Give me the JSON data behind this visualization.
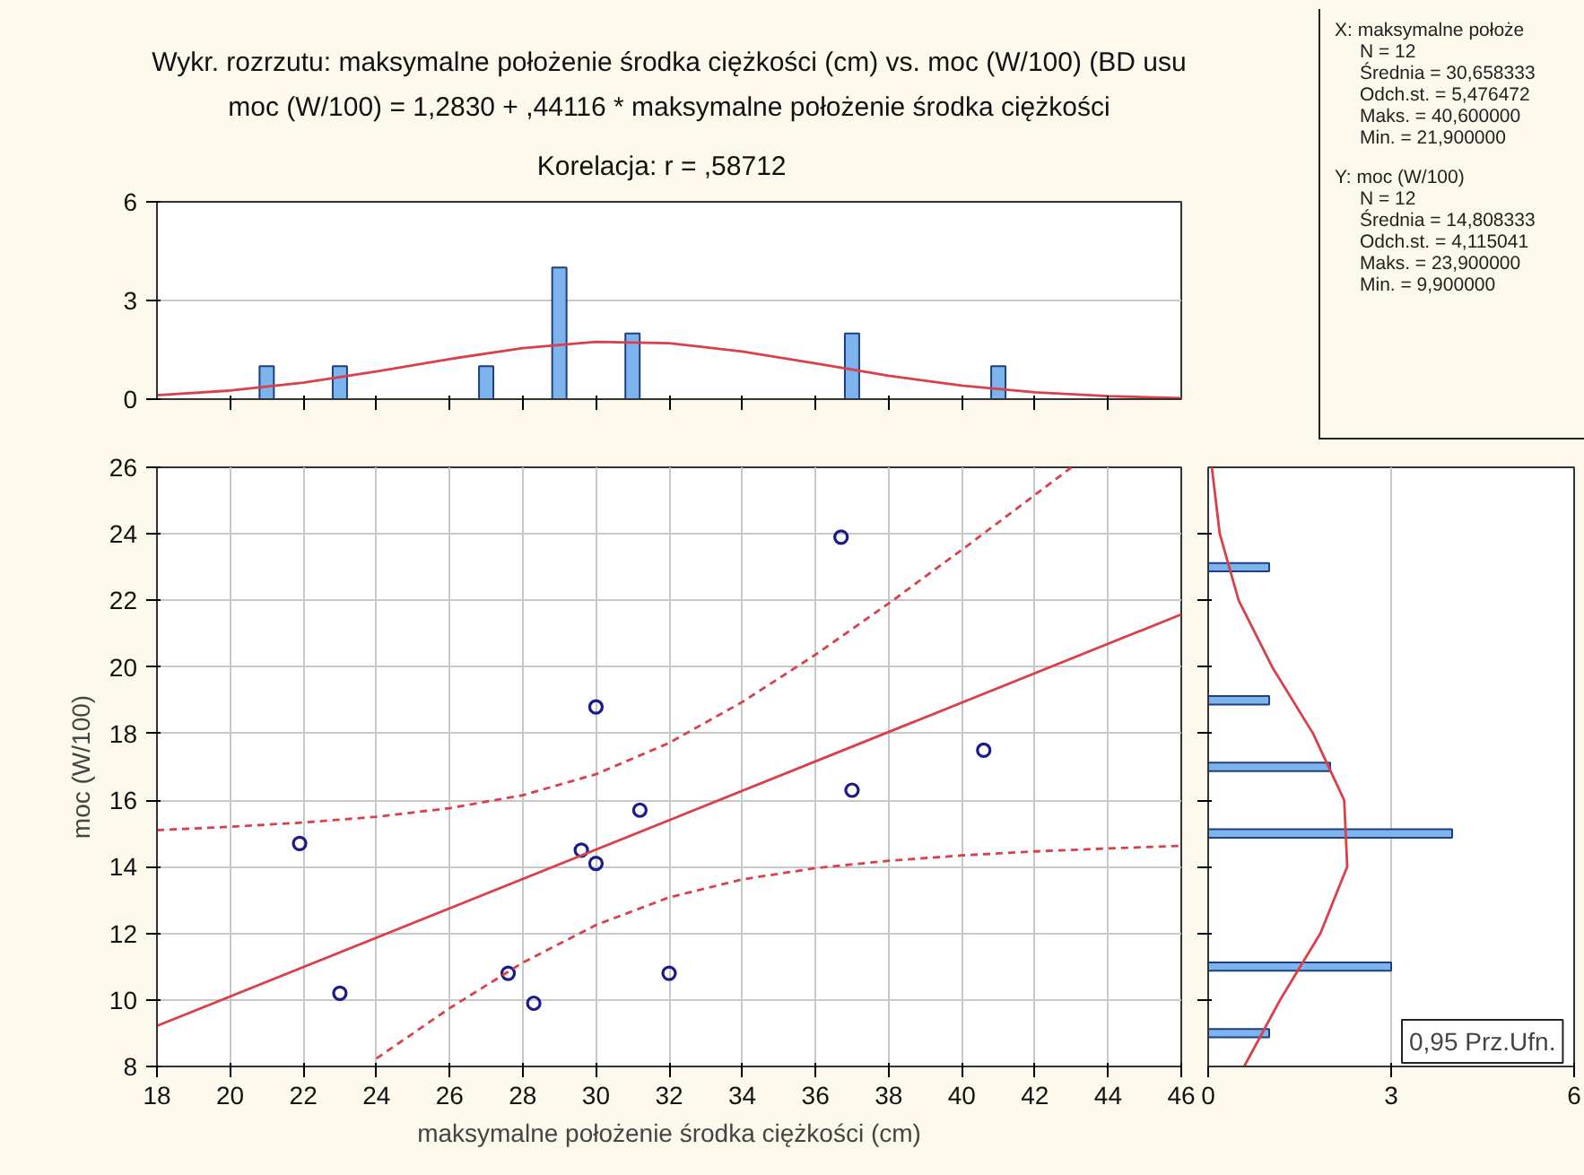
{
  "chart_data": [
    {
      "type": "scatter",
      "annotations": [
        "0,95 Prz.Ufn."
      ],
      "xlabel": "maksymalne położenie środka ciężkości (cm)",
      "ylabel": "moc (W/100)",
      "xlim": [
        18,
        46
      ],
      "xticks": [
        18,
        20,
        22,
        24,
        26,
        28,
        30,
        32,
        34,
        36,
        38,
        40,
        42,
        44,
        46
      ],
      "ylim": [
        8,
        26
      ],
      "yticks": [
        8,
        10,
        12,
        14,
        16,
        18,
        20,
        22,
        24,
        26
      ],
      "grid": true,
      "marker": "circle",
      "series": [
        {
          "color": "#1a1a8c",
          "x": [
            21.9,
            23.0,
            27.6,
            28.3,
            29.6,
            30.0,
            30.0,
            31.2,
            32.0,
            36.7,
            37.0,
            40.6
          ],
          "values": [
            14.7,
            10.2,
            10.8,
            9.9,
            14.5,
            18.8,
            14.1,
            15.7,
            10.8,
            23.9,
            16.3,
            17.5
          ]
        },
        {
          "type": "line",
          "marker": "none",
          "color": "#d9404a",
          "line_style": "solid",
          "x": [
            18,
            46
          ],
          "values": [
            9.22,
            21.58
          ]
        },
        {
          "type": "line",
          "marker": "none",
          "color": "#d9404a",
          "line_style": "dashed",
          "x": [
            18,
            20,
            22,
            24,
            26,
            28,
            30,
            32,
            34,
            36,
            38,
            40,
            42,
            43
          ],
          "values": [
            15.1,
            15.2,
            15.33,
            15.5,
            15.76,
            16.15,
            16.78,
            17.72,
            18.95,
            20.37,
            21.91,
            23.52,
            25.17,
            26.0
          ]
        },
        {
          "type": "line",
          "marker": "none",
          "color": "#d9404a",
          "line_style": "dashed",
          "x": [
            24,
            26,
            28,
            30,
            32,
            34,
            36,
            38,
            40,
            42,
            44,
            46
          ],
          "values": [
            8.24,
            9.75,
            11.12,
            12.25,
            13.08,
            13.62,
            13.96,
            14.18,
            14.34,
            14.46,
            14.55,
            14.63
          ]
        }
      ]
    },
    {
      "type": "bar",
      "title": "Wykr. rozrzutu: maksymalne położenie środka ciężkości (cm) vs. moc (W/100) (BD usu",
      "subtitle": "moc (W/100) = 1,2830 + ,44116 * maksymalne położenie środka ciężkości",
      "annotations": [
        "Korelacja: r =   ,58712"
      ],
      "xlim": [
        18,
        46
      ],
      "xticks": [
        {
          "value": 20,
          "label": null
        },
        {
          "value": 22,
          "label": null
        },
        {
          "value": 24,
          "label": null
        },
        {
          "value": 26,
          "label": null
        },
        {
          "value": 28,
          "label": null
        },
        {
          "value": 30,
          "label": null
        },
        {
          "value": 32,
          "label": null
        },
        {
          "value": 34,
          "label": null
        },
        {
          "value": 36,
          "label": null
        },
        {
          "value": 38,
          "label": null
        },
        {
          "value": 40,
          "label": null
        },
        {
          "value": 42,
          "label": null
        },
        {
          "value": 44,
          "label": null
        }
      ],
      "ylim": [
        0,
        6
      ],
      "yticks": [
        0,
        3,
        6
      ],
      "grid": "y",
      "tick_labels": "y",
      "series": [
        {
          "color": "#7db4ee",
          "x": [
            21,
            23,
            27,
            29,
            31,
            37,
            41
          ],
          "values": [
            1,
            1,
            1,
            4,
            2,
            2,
            1
          ]
        },
        {
          "type": "line",
          "color": "#d9404a",
          "x": [
            18,
            20,
            22,
            24,
            26,
            28,
            30,
            32,
            34,
            36,
            38,
            40,
            42,
            44,
            46
          ],
          "values": [
            0.12,
            0.26,
            0.5,
            0.84,
            1.22,
            1.55,
            1.74,
            1.7,
            1.45,
            1.09,
            0.71,
            0.41,
            0.21,
            0.09,
            0.03
          ]
        }
      ]
    },
    {
      "type": "bar",
      "orientation": "horizontal",
      "xlim": [
        0,
        6
      ],
      "xticks": [
        0,
        3,
        6
      ],
      "ylim": [
        8,
        26
      ],
      "yticks": [
        {
          "value": 10,
          "label": null
        },
        {
          "value": 12,
          "label": null
        },
        {
          "value": 14,
          "label": null
        },
        {
          "value": 16,
          "label": null
        },
        {
          "value": 18,
          "label": null
        },
        {
          "value": 20,
          "label": null
        },
        {
          "value": 22,
          "label": null
        },
        {
          "value": 24,
          "label": null
        }
      ],
      "grid": "x",
      "tick_labels": "x",
      "series": [
        {
          "color": "#7db4ee",
          "x": [
            23,
            19,
            17,
            15,
            11,
            9
          ],
          "values": [
            1,
            1,
            2,
            4,
            3,
            1
          ]
        },
        {
          "type": "line",
          "color": "#d9404a",
          "x": [
            8,
            10,
            12,
            14,
            16,
            18,
            20,
            22,
            24,
            26
          ],
          "values": [
            0.59,
            1.18,
            1.84,
            2.28,
            2.23,
            1.72,
            1.05,
            0.5,
            0.19,
            0.06
          ]
        }
      ]
    },
    {
      "type": "other",
      "annotations": [
        "X:  maksymalne położe",
        "N = 12",
        "Średnia = 30,658333",
        "Odch.st. = 5,476472",
        "Maks. = 40,600000",
        "Min. = 21,900000",
        "Y:  moc (W/100)",
        "N = 12",
        "Średnia = 14,808333",
        "Odch.st. = 4,115041",
        "Maks. = 23,900000",
        "Min. = 9,900000"
      ]
    }
  ]
}
